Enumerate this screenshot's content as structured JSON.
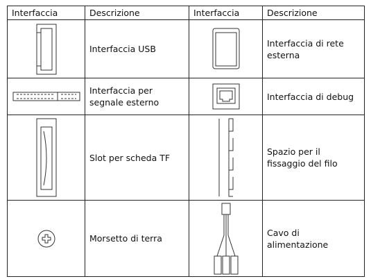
{
  "table": {
    "header": [
      "Interfaccia",
      "Descrizione",
      "Interfaccia",
      "Descrizione"
    ],
    "rows": [
      [
        "Interfaccia USB",
        "Interfaccia di rete esterna"
      ],
      [
        "Interfaccia per segnale esterno",
        "Interfaccia di debug"
      ],
      [
        "Slot per scheda TF",
        "Spazio per il fissaggio del filo"
      ],
      [
        "Morsetto di terra",
        "Cavo di alimentazione"
      ]
    ]
  }
}
